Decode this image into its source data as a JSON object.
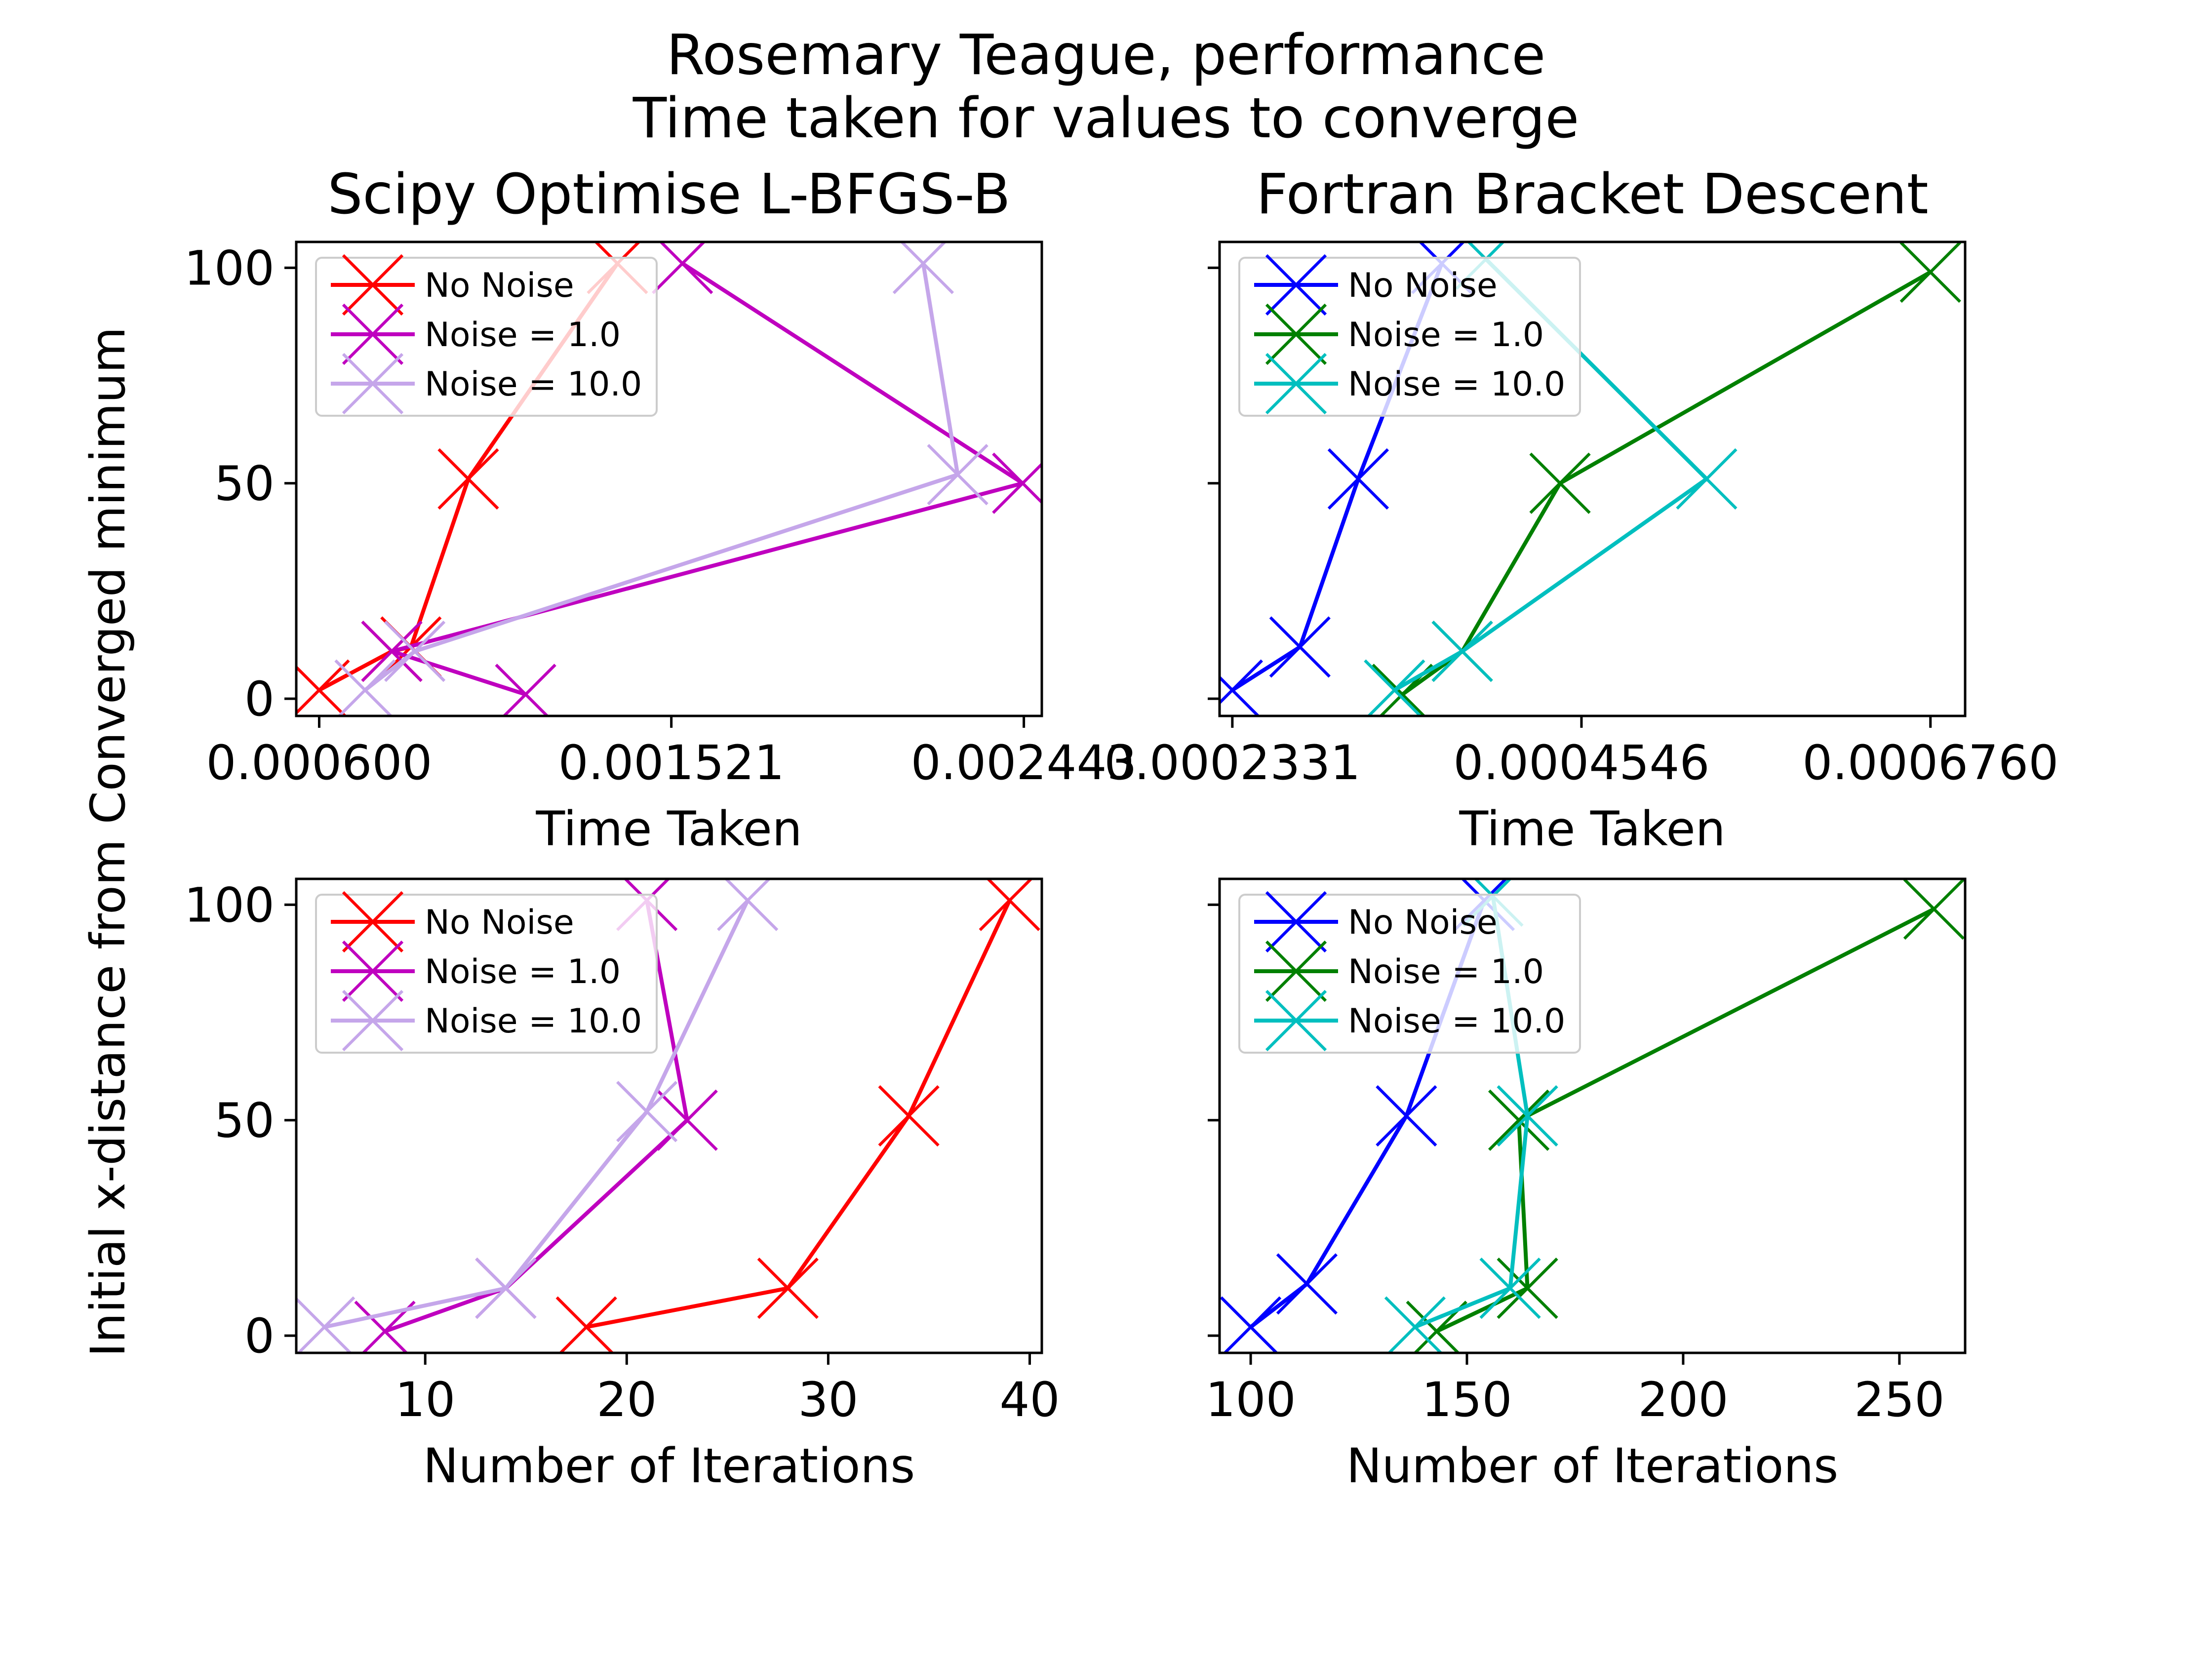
{
  "figure": {
    "title": "Rosemary Teague, performance\nTime taken for values to converge",
    "title_lines": [
      "Rosemary Teague, performance",
      "Time taken for values to converge"
    ],
    "ylabel": "Initial x-distance from Converged minimum"
  },
  "chart_data": [
    {
      "type": "line",
      "title": "Scipy Optimise L-BFGS-B",
      "xlabel": "Time Taken",
      "ylabel": "Initial x-distance from Converged minimum",
      "xlim": [
        0.00054,
        0.00249
      ],
      "ylim": [
        -4,
        106
      ],
      "xticks": [
        0.0006,
        0.001521,
        0.002443
      ],
      "xtick_labels": [
        "0.000600",
        "0.001521",
        "0.002443"
      ],
      "yticks": [
        0,
        50,
        100
      ],
      "ytick_labels": [
        "0",
        "50",
        "100"
      ],
      "marker": "x",
      "legend_position": "upper left",
      "grid": false,
      "series": [
        {
          "name": "No Noise",
          "color": "#ff0000",
          "x": [
            0.0006,
            0.00079,
            0.00084,
            0.00099,
            0.00138
          ],
          "y": [
            2,
            11,
            12,
            51,
            101
          ]
        },
        {
          "name": "Noise = 1.0",
          "color": "#bf00bf",
          "x": [
            0.00114,
            0.00079,
            0.00244,
            0.00155
          ],
          "y": [
            1,
            11,
            50,
            101
          ]
        },
        {
          "name": "Noise = 10.0",
          "color": "#c5a6ea",
          "x": [
            0.00072,
            0.00085,
            0.00227,
            0.00218
          ],
          "y": [
            2,
            11,
            52,
            101
          ]
        }
      ]
    },
    {
      "type": "line",
      "title": "Fortran Bracket Descent",
      "xlabel": "Time Taken",
      "ylabel": "",
      "xlim": [
        0.000225,
        0.000698
      ],
      "ylim": [
        -4,
        106
      ],
      "xticks": [
        0.0002331,
        0.0004546,
        0.000676
      ],
      "xtick_labels": [
        "0.0002331",
        "0.0004546",
        "0.0006760"
      ],
      "yticks": [
        0,
        50,
        100
      ],
      "ytick_labels": [
        "",
        "",
        ""
      ],
      "marker": "x",
      "legend_position": "upper left",
      "grid": false,
      "series": [
        {
          "name": "No Noise",
          "color": "#0000ff",
          "x": [
            0.0002331,
            0.000276,
            0.000313,
            0.000366
          ],
          "y": [
            2,
            12,
            51,
            101
          ]
        },
        {
          "name": "Noise = 1.0",
          "color": "#008000",
          "x": [
            0.000341,
            0.000379,
            0.000441,
            0.000676
          ],
          "y": [
            1,
            11,
            50,
            99
          ]
        },
        {
          "name": "Noise = 10.0",
          "color": "#00bfbf",
          "x": [
            0.000336,
            0.000379,
            0.000534,
            0.000394
          ],
          "y": [
            2,
            11,
            51,
            102
          ]
        }
      ]
    },
    {
      "type": "line",
      "title": "",
      "xlabel": "Number of Iterations",
      "ylabel": "Initial x-distance from Converged minimum",
      "xlim": [
        3.6,
        40.6
      ],
      "ylim": [
        -4,
        106
      ],
      "xticks": [
        10,
        20,
        30,
        40
      ],
      "xtick_labels": [
        "10",
        "20",
        "30",
        "40"
      ],
      "yticks": [
        0,
        50,
        100
      ],
      "ytick_labels": [
        "0",
        "50",
        "100"
      ],
      "marker": "x",
      "legend_position": "upper left",
      "grid": false,
      "series": [
        {
          "name": "No Noise",
          "color": "#ff0000",
          "x": [
            18,
            28,
            34,
            39
          ],
          "y": [
            2,
            11,
            51,
            101
          ]
        },
        {
          "name": "Noise = 1.0",
          "color": "#bf00bf",
          "x": [
            8,
            14,
            23,
            21
          ],
          "y": [
            1,
            11,
            50,
            101
          ]
        },
        {
          "name": "Noise = 10.0",
          "color": "#c5a6ea",
          "x": [
            5,
            14,
            21,
            26
          ],
          "y": [
            2,
            11,
            52,
            101
          ]
        }
      ]
    },
    {
      "type": "line",
      "title": "",
      "xlabel": "Number of Iterations",
      "ylabel": "",
      "xlim": [
        92.8,
        265.2
      ],
      "ylim": [
        -4,
        106
      ],
      "xticks": [
        100,
        150,
        200,
        250
      ],
      "xtick_labels": [
        "100",
        "150",
        "200",
        "250"
      ],
      "yticks": [
        0,
        50,
        100
      ],
      "ytick_labels": [
        "",
        "",
        ""
      ],
      "marker": "x",
      "legend_position": "upper left",
      "grid": false,
      "series": [
        {
          "name": "No Noise",
          "color": "#0000ff",
          "x": [
            100,
            113,
            136,
            154
          ],
          "y": [
            2,
            12,
            51,
            101
          ]
        },
        {
          "name": "Noise = 1.0",
          "color": "#008000",
          "x": [
            143,
            164,
            162,
            258
          ],
          "y": [
            1,
            11,
            50,
            99
          ]
        },
        {
          "name": "Noise = 10.0",
          "color": "#00bfbf",
          "x": [
            138,
            160,
            164,
            156
          ],
          "y": [
            2,
            11,
            51,
            102
          ]
        }
      ]
    }
  ]
}
